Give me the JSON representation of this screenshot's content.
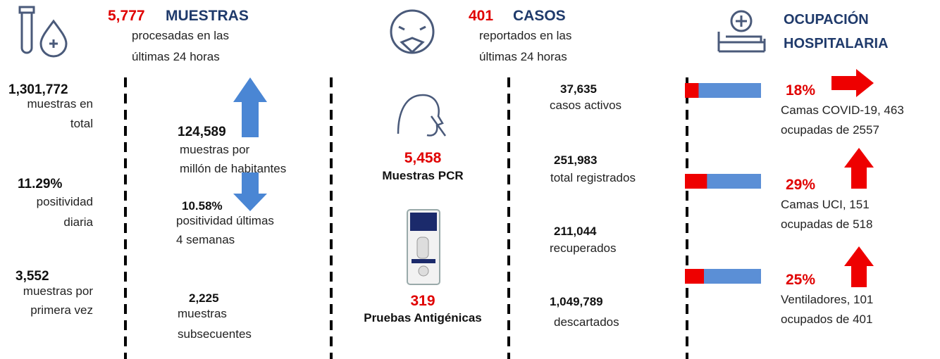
{
  "muestras": {
    "header": {
      "number": "5,777",
      "title": "MUESTRAS",
      "subtitle_lines": [
        "procesadas en las",
        "últimas 24 horas"
      ]
    },
    "totals": [
      {
        "number": "1,301,772",
        "lines": [
          "muestras en",
          "total"
        ]
      },
      {
        "number": "11.29%",
        "lines": [
          "positividad",
          "diaria"
        ]
      },
      {
        "number": "3,552",
        "lines": [
          "muestras por",
          "primera vez"
        ]
      }
    ],
    "details": [
      {
        "number": "124,589",
        "lines": [
          "muestras por",
          "millón de habitantes"
        ]
      },
      {
        "number": "10.58%",
        "lines": [
          "positividad últimas",
          "4 semanas"
        ]
      },
      {
        "number": "2,225",
        "lines": [
          "muestras",
          "subsecuentes"
        ]
      }
    ]
  },
  "casos": {
    "header": {
      "number": "401",
      "title": "CASOS",
      "subtitle_lines": [
        "reportados en las",
        "últimas 24 horas"
      ]
    },
    "stats": [
      {
        "number": "37,635",
        "label": "casos activos"
      },
      {
        "number": "251,983",
        "label": "total registrados"
      },
      {
        "number": "211,044",
        "label": "recuperados"
      },
      {
        "number": "1,049,789",
        "label": "descartados"
      }
    ]
  },
  "pruebas": [
    {
      "number": "5,458",
      "label": "Muestras PCR"
    },
    {
      "number": "319",
      "label": "Pruebas Antigénicas"
    }
  ],
  "ocupacion": {
    "title_lines": [
      "OCUPACIÓN",
      "HOSPITALARIA"
    ],
    "items": [
      {
        "percent": {
          "value": 18,
          "label": "18%"
        },
        "lines": [
          "Camas COVID-19,  463",
          "ocupadas de 2557"
        ]
      },
      {
        "percent": {
          "value": 29,
          "label": "29%"
        },
        "lines": [
          "Camas UCI,  151",
          "ocupadas de 518"
        ]
      },
      {
        "percent": {
          "value": 25,
          "label": "25%"
        },
        "lines": [
          "Ventiladores, 101",
          "ocupados de 401"
        ]
      }
    ]
  }
}
